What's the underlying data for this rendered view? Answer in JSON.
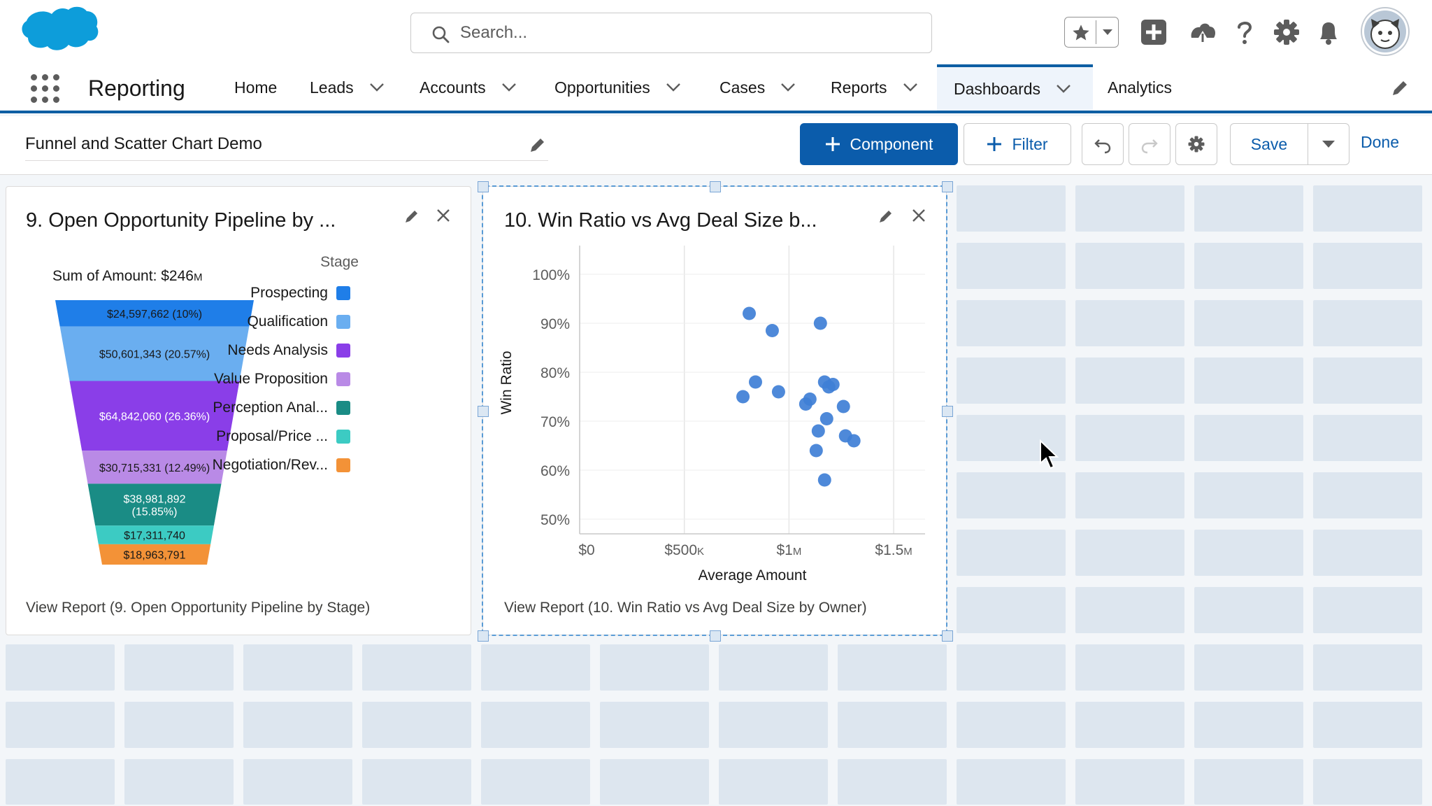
{
  "header": {
    "search_placeholder": "Search...",
    "icons": [
      "star-icon",
      "chevron-down-icon",
      "add-icon",
      "trailhead-icon",
      "help-icon",
      "setup-gear-icon",
      "bell-icon"
    ]
  },
  "nav": {
    "app_name": "Reporting",
    "items": [
      {
        "label": "Home",
        "dropdown": false,
        "active": false
      },
      {
        "label": "Leads",
        "dropdown": true,
        "active": false
      },
      {
        "label": "Accounts",
        "dropdown": true,
        "active": false
      },
      {
        "label": "Opportunities",
        "dropdown": true,
        "active": false
      },
      {
        "label": "Cases",
        "dropdown": true,
        "active": false
      },
      {
        "label": "Reports",
        "dropdown": true,
        "active": false
      },
      {
        "label": "Dashboards",
        "dropdown": true,
        "active": true
      },
      {
        "label": "Analytics",
        "dropdown": false,
        "active": false
      }
    ]
  },
  "toolbar": {
    "dashboard_title": "Funnel and Scatter Chart Demo",
    "component_label": "Component",
    "filter_label": "Filter",
    "save_label": "Save",
    "done_label": "Done"
  },
  "funnel_card": {
    "title": "9. Open Opportunity Pipeline by ...",
    "sum_label": "Sum of Amount: $246",
    "sum_suffix": "M",
    "legend_title": "Stage",
    "view_report": "View Report (9. Open Opportunity Pipeline by Stage)"
  },
  "scatter_card": {
    "title": "10. Win Ratio vs Avg Deal Size b...",
    "view_report": "View Report (10. Win Ratio vs Avg Deal Size by Owner)"
  },
  "colors": {
    "brand": "#0b5cab",
    "nav_accent": "#0d5ea3",
    "scatter_point": "#3f7fd6"
  },
  "chart_data": [
    {
      "type": "funnel",
      "title": "Sum of Amount: $246M",
      "legend_title": "Stage",
      "categories": [
        "Prospecting",
        "Qualification",
        "Needs Analysis",
        "Value Proposition",
        "Perception Anal...",
        "Proposal/Price ...",
        "Negotiation/Rev..."
      ],
      "values": [
        24597662,
        50601343,
        64842060,
        30715331,
        38981892,
        17311740,
        18963791
      ],
      "data_labels": [
        "$24,597,662 (10%)",
        "$50,601,343 (20.57%)",
        "$64,842,060 (26.36%)",
        "$30,715,331 (12.49%)",
        "$38,981,892 (15.85%)",
        "$17,311,740",
        "$18,963,791"
      ],
      "colors": [
        "#1f7ee8",
        "#6aaef0",
        "#8a3ee8",
        "#b98ae6",
        "#1a8c85",
        "#3ccbc3",
        "#f39237"
      ]
    },
    {
      "type": "scatter",
      "xlabel": "Average Amount",
      "ylabel": "Win Ratio",
      "xlim": [
        0,
        1650000
      ],
      "ylim": [
        47,
        103
      ],
      "xticks": [
        0,
        500000,
        1000000,
        1500000
      ],
      "xtick_labels": [
        "$0",
        "$500",
        "$1",
        "$1.5"
      ],
      "xtick_suffix": [
        "",
        "K",
        "M",
        "M"
      ],
      "yticks": [
        50,
        60,
        70,
        80,
        90,
        100
      ],
      "ytick_labels": [
        "50%",
        "60%",
        "70%",
        "80%",
        "90%",
        "100%"
      ],
      "grid": true,
      "points": [
        {
          "x": 810000,
          "y": 92
        },
        {
          "x": 920000,
          "y": 88.5
        },
        {
          "x": 1150000,
          "y": 90
        },
        {
          "x": 780000,
          "y": 75
        },
        {
          "x": 840000,
          "y": 78
        },
        {
          "x": 950000,
          "y": 76
        },
        {
          "x": 1080000,
          "y": 73.5
        },
        {
          "x": 1100000,
          "y": 74.5
        },
        {
          "x": 1170000,
          "y": 78
        },
        {
          "x": 1190000,
          "y": 77
        },
        {
          "x": 1210000,
          "y": 77.5
        },
        {
          "x": 1260000,
          "y": 73
        },
        {
          "x": 1180000,
          "y": 70.5
        },
        {
          "x": 1140000,
          "y": 68
        },
        {
          "x": 1130000,
          "y": 64
        },
        {
          "x": 1270000,
          "y": 67
        },
        {
          "x": 1310000,
          "y": 66
        },
        {
          "x": 1170000,
          "y": 58
        }
      ]
    }
  ]
}
